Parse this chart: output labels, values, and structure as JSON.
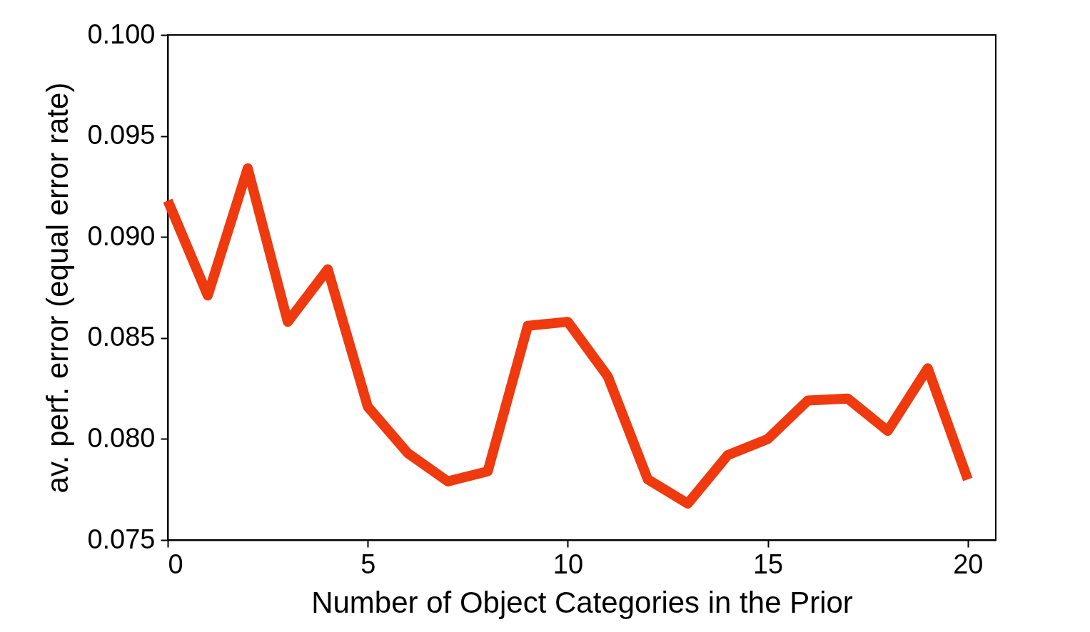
{
  "chart_data": {
    "type": "line",
    "xlabel": "Number of Object Categories in the Prior",
    "ylabel": "av. perf. error (equal error rate)",
    "x": [
      0,
      1,
      2,
      3,
      4,
      5,
      6,
      7,
      8,
      9,
      10,
      11,
      12,
      13,
      14,
      15,
      16,
      17,
      18,
      19,
      20
    ],
    "series": [
      {
        "color": "#ee3a0e",
        "values": [
          0.0918,
          0.0871,
          0.0934,
          0.0858,
          0.0884,
          0.0816,
          0.0793,
          0.0779,
          0.0784,
          0.0856,
          0.0858,
          0.0831,
          0.078,
          0.0768,
          0.0792,
          0.08,
          0.0819,
          0.082,
          0.0804,
          0.0835,
          0.078
        ]
      }
    ],
    "xlim": [
      0,
      20.7
    ],
    "xticks": [
      0,
      5,
      10,
      15,
      20
    ],
    "ylim": [
      0.075,
      0.1
    ],
    "yticks": [
      {
        "value": 0.075,
        "label": "0.075"
      },
      {
        "value": 0.08,
        "label": "0.080"
      },
      {
        "value": 0.085,
        "label": "0.085"
      },
      {
        "value": 0.09,
        "label": "0.090"
      },
      {
        "value": 0.095,
        "label": "0.095"
      },
      {
        "value": 0.1,
        "label": "0.100"
      }
    ],
    "grid": false,
    "marker": "none",
    "line_style": "solid"
  }
}
